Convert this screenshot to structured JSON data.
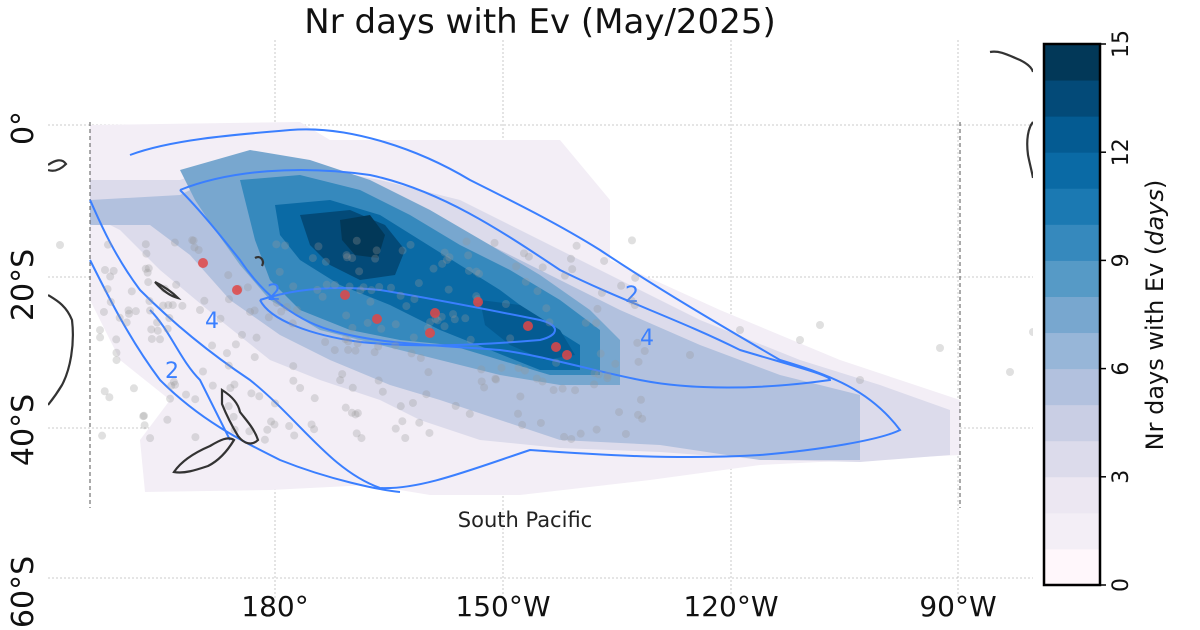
{
  "title": "Nr days with Ev (May/2025)",
  "region_label": "South Pacific",
  "lat_labels": [
    "0°",
    "20°S",
    "40°S",
    "60°S"
  ],
  "lon_labels": [
    "180°",
    "150°W",
    "120°W",
    "90°W"
  ],
  "colorbar": {
    "label_main": "Nr days with Ev ",
    "label_unit": "days",
    "ticks": [
      "0",
      "3",
      "6",
      "9",
      "12",
      "15"
    ],
    "min": 0,
    "max": 15,
    "levels": 15,
    "colormap": "PuBu"
  },
  "contour_levels": [
    "2",
    "4"
  ],
  "colors": {
    "contour": "#3a7fff",
    "coast": "#333333",
    "event_dot": "#e04646",
    "station_dot": "#999999"
  },
  "chart_data": {
    "type": "heatmap",
    "variable": "Nr days with Ev",
    "unit": "days",
    "period": "May/2025",
    "region": "South Pacific",
    "value_range": [
      0,
      15
    ],
    "axes": {
      "lat_ticks": [
        "0°",
        "20°S",
        "40°S",
        "60°S"
      ],
      "lon_ticks": [
        "180°",
        "150°W",
        "120°W",
        "90°W"
      ]
    },
    "contours": [
      2,
      4
    ]
  }
}
